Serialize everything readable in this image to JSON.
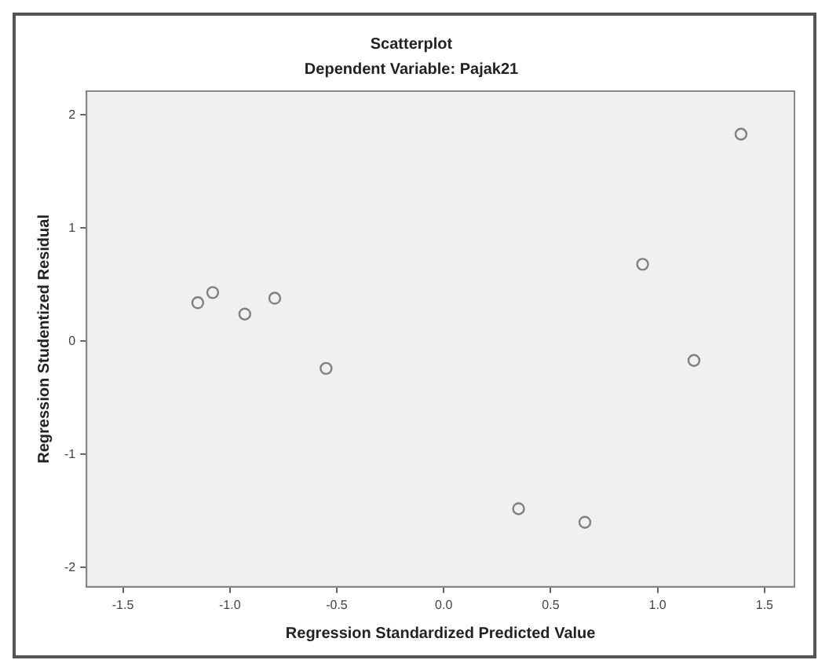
{
  "chart_data": {
    "type": "scatter",
    "title": "Scatterplot",
    "subtitle": "Dependent Variable: Pajak21",
    "xlabel": "Regression Standardized Predicted Value",
    "ylabel": "Regression Studentized Residual",
    "x": [
      -1.15,
      -1.08,
      -0.93,
      -0.79,
      -0.55,
      0.35,
      0.66,
      0.93,
      1.17,
      1.39
    ],
    "series": [
      {
        "color": "#808080",
        "values": [
          0.34,
          0.43,
          0.24,
          0.38,
          -0.24,
          -1.48,
          -1.6,
          0.68,
          -0.17,
          1.83
        ]
      }
    ],
    "xlim": [
      -1.67,
      1.64
    ],
    "xticks": [
      {
        "value": -1.5,
        "label": "-1.5"
      },
      {
        "value": -1,
        "label": "-1.0"
      },
      {
        "value": -0.5,
        "label": "-0.5"
      },
      {
        "value": 0,
        "label": "0.0"
      },
      {
        "value": 0.5,
        "label": "0.5"
      },
      {
        "value": 1,
        "label": "1.0"
      },
      {
        "value": 1.5,
        "label": "1.5"
      }
    ],
    "ylim": [
      -2.17,
      2.21
    ],
    "yticks": [
      -2,
      -1,
      0,
      1,
      2
    ],
    "grid": false,
    "legend": false,
    "marker": "circle"
  }
}
